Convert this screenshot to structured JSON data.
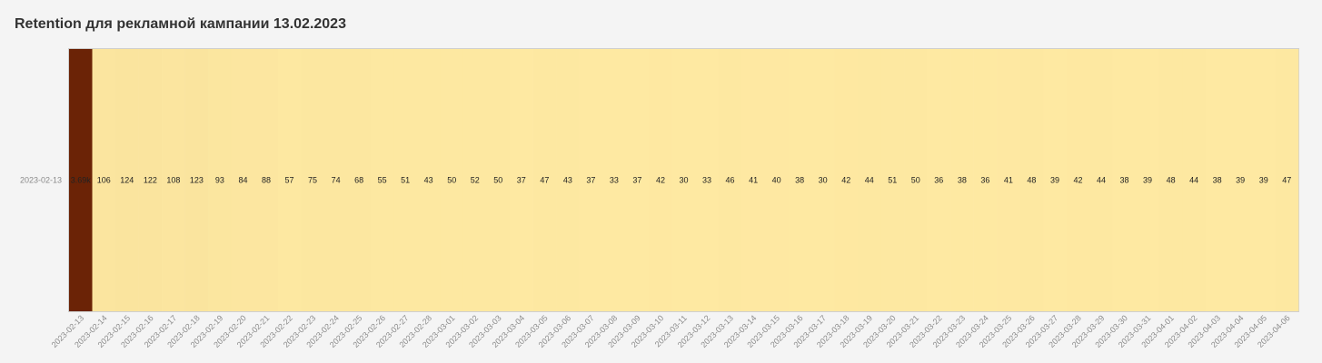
{
  "title": "Retention для рекламной кампании 13.02.2023",
  "colors": {
    "low": "#fee9a2",
    "high": "#6b2306",
    "label_on_dark": "#ffffff",
    "label_on_light": "#222222"
  },
  "chart_data": {
    "type": "heatmap",
    "title": "Retention для рекламной кампании 13.02.2023",
    "y_categories": [
      "2023-02-13"
    ],
    "x_categories": [
      "2023-02-13",
      "2023-02-14",
      "2023-02-15",
      "2023-02-16",
      "2023-02-17",
      "2023-02-18",
      "2023-02-19",
      "2023-02-20",
      "2023-02-21",
      "2023-02-22",
      "2023-02-23",
      "2023-02-24",
      "2023-02-25",
      "2023-02-26",
      "2023-02-27",
      "2023-02-28",
      "2023-03-01",
      "2023-03-02",
      "2023-03-03",
      "2023-03-04",
      "2023-03-05",
      "2023-03-06",
      "2023-03-07",
      "2023-03-08",
      "2023-03-09",
      "2023-03-10",
      "2023-03-11",
      "2023-03-12",
      "2023-03-13",
      "2023-03-14",
      "2023-03-15",
      "2023-03-16",
      "2023-03-17",
      "2023-03-18",
      "2023-03-19",
      "2023-03-20",
      "2023-03-21",
      "2023-03-22",
      "2023-03-23",
      "2023-03-24",
      "2023-03-25",
      "2023-03-26",
      "2023-03-27",
      "2023-03-28",
      "2023-03-29",
      "2023-03-30",
      "2023-03-31",
      "2023-04-01",
      "2023-04-02",
      "2023-04-03",
      "2023-04-04",
      "2023-04-05",
      "2023-04-06"
    ],
    "values": [
      3690,
      106,
      124,
      122,
      108,
      123,
      93,
      84,
      88,
      57,
      75,
      74,
      68,
      55,
      51,
      43,
      50,
      52,
      50,
      37,
      47,
      43,
      37,
      33,
      37,
      42,
      30,
      33,
      46,
      41,
      40,
      38,
      30,
      42,
      44,
      51,
      50,
      36,
      38,
      36,
      41,
      48,
      39,
      42,
      44,
      38,
      39,
      48,
      44,
      38,
      39,
      39,
      47
    ],
    "labels": [
      "3.69k",
      "106",
      "124",
      "122",
      "108",
      "123",
      "93",
      "84",
      "88",
      "57",
      "75",
      "74",
      "68",
      "55",
      "51",
      "43",
      "50",
      "52",
      "50",
      "37",
      "47",
      "43",
      "37",
      "33",
      "37",
      "42",
      "30",
      "33",
      "46",
      "41",
      "40",
      "38",
      "30",
      "42",
      "44",
      "51",
      "50",
      "36",
      "38",
      "36",
      "41",
      "48",
      "39",
      "42",
      "44",
      "38",
      "39",
      "48",
      "44",
      "38",
      "39",
      "39",
      "47"
    ]
  }
}
